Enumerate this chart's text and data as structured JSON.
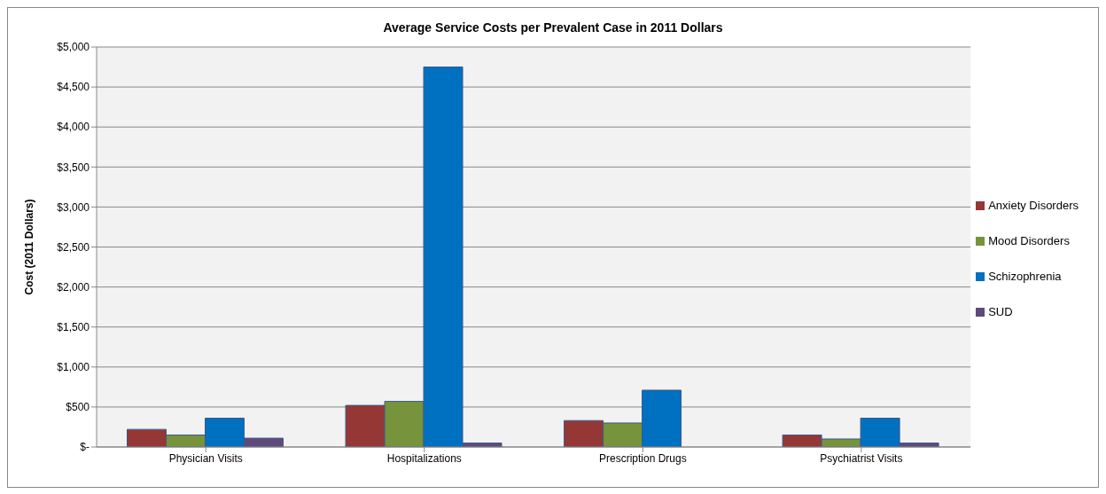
{
  "chart_data": {
    "type": "bar",
    "title": "Average Service Costs per Prevalent Case in 2011 Dollars",
    "ylabel": "Cost (2011 Dollars)",
    "categories": [
      "Physician  Visits",
      "Hospitalizations",
      "Prescription Drugs",
      "Psychiatrist Visits"
    ],
    "series": [
      {
        "name": "Anxiety Disorders",
        "color": "#953735",
        "values": [
          220,
          520,
          330,
          150
        ]
      },
      {
        "name": "Mood Disorders",
        "color": "#77933c",
        "values": [
          150,
          570,
          300,
          100
        ]
      },
      {
        "name": "Schizophrenia",
        "color": "#0070c0",
        "values": [
          360,
          4750,
          710,
          360
        ]
      },
      {
        "name": "SUD",
        "color": "#604a7b",
        "values": [
          110,
          50,
          0,
          50
        ]
      }
    ],
    "ylim": [
      0,
      5000
    ],
    "yticks": [
      {
        "value": 0,
        "label": "$-"
      },
      {
        "value": 500,
        "label": "$500"
      },
      {
        "value": 1000,
        "label": "$1,000"
      },
      {
        "value": 1500,
        "label": "$1,500"
      },
      {
        "value": 2000,
        "label": "$2,000"
      },
      {
        "value": 2500,
        "label": "$2,500"
      },
      {
        "value": 3000,
        "label": "$3,000"
      },
      {
        "value": 3500,
        "label": "$3,500"
      },
      {
        "value": 4000,
        "label": "$4,000"
      },
      {
        "value": 4500,
        "label": "$4,500"
      },
      {
        "value": 5000,
        "label": "$5,000"
      }
    ],
    "grid": "y",
    "legend": "right"
  }
}
